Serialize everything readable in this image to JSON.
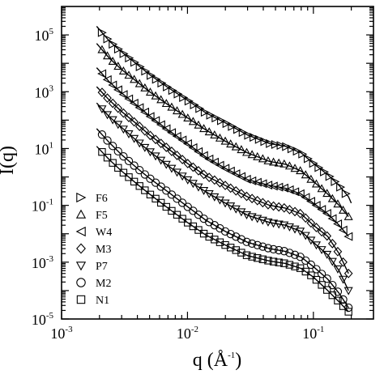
{
  "chart_data": {
    "type": "scatter",
    "x_scale": "log",
    "y_scale": "log",
    "xlim": [
      0.001,
      0.3
    ],
    "ylim": [
      1e-05,
      1000000
    ],
    "xlabel": "q (Å",
    "xlabel_sup": "-1",
    "xlabel_close": ")",
    "ylabel": "I(q)",
    "legend_position": "bottom-left",
    "x_ticks": [
      {
        "value": 0.001,
        "base": "10",
        "exp": "-3"
      },
      {
        "value": 0.01,
        "base": "10",
        "exp": "-2"
      },
      {
        "value": 0.1,
        "base": "10",
        "exp": "-1"
      }
    ],
    "y_ticks": [
      {
        "value": 1e-05,
        "base": "10",
        "exp": "-5"
      },
      {
        "value": 0.001,
        "base": "10",
        "exp": "-3"
      },
      {
        "value": 0.1,
        "base": "10",
        "exp": "-1"
      },
      {
        "value": 10,
        "base": "10",
        "exp": "1"
      },
      {
        "value": 1000,
        "base": "10",
        "exp": "3"
      },
      {
        "value": 100000,
        "base": "10",
        "exp": "5"
      }
    ],
    "series": [
      {
        "name": "F6",
        "marker": "triangle-right",
        "x": [
          0.0019,
          0.0024,
          0.003,
          0.004,
          0.005,
          0.007,
          0.01,
          0.014,
          0.02,
          0.03,
          0.045,
          0.06,
          0.08,
          0.1,
          0.13,
          0.16,
          0.19,
          0.2
        ],
        "y": [
          200000,
          60000,
          25000,
          9000,
          4000,
          1400,
          500,
          180,
          80,
          30,
          15,
          12,
          7,
          3,
          1.2,
          0.5,
          0.2,
          0.12
        ]
      },
      {
        "name": "F5",
        "marker": "triangle-up",
        "x": [
          0.0019,
          0.0024,
          0.003,
          0.004,
          0.005,
          0.007,
          0.01,
          0.014,
          0.02,
          0.03,
          0.045,
          0.06,
          0.08,
          0.1,
          0.13,
          0.16,
          0.19
        ],
        "y": [
          50000,
          15000,
          6000,
          2200,
          1000,
          350,
          120,
          45,
          18,
          7,
          3.5,
          2.8,
          1.6,
          0.7,
          0.25,
          0.1,
          0.04
        ]
      },
      {
        "name": "W4",
        "marker": "triangle-left",
        "x": [
          0.0019,
          0.0024,
          0.003,
          0.004,
          0.005,
          0.007,
          0.01,
          0.014,
          0.02,
          0.03,
          0.045,
          0.06,
          0.08,
          0.1,
          0.13,
          0.16,
          0.19
        ],
        "y": [
          7000,
          2200,
          900,
          320,
          140,
          45,
          15,
          5,
          2,
          0.8,
          0.5,
          0.4,
          0.25,
          0.12,
          0.05,
          0.02,
          0.008
        ]
      },
      {
        "name": "M3",
        "marker": "diamond",
        "x": [
          0.0019,
          0.0024,
          0.003,
          0.004,
          0.005,
          0.007,
          0.01,
          0.014,
          0.02,
          0.03,
          0.045,
          0.06,
          0.08,
          0.1,
          0.13,
          0.16,
          0.19
        ],
        "y": [
          1500,
          500,
          200,
          70,
          30,
          10,
          3,
          1.1,
          0.5,
          0.2,
          0.1,
          0.08,
          0.05,
          0.02,
          0.008,
          0.002,
          0.0004
        ]
      },
      {
        "name": "P7",
        "marker": "triangle-down",
        "x": [
          0.0019,
          0.0024,
          0.003,
          0.004,
          0.005,
          0.007,
          0.01,
          0.014,
          0.02,
          0.03,
          0.045,
          0.06,
          0.08,
          0.1,
          0.13,
          0.16,
          0.19
        ],
        "y": [
          400,
          130,
          55,
          18,
          8,
          2.5,
          0.8,
          0.3,
          0.12,
          0.045,
          0.025,
          0.02,
          0.012,
          0.005,
          0.0018,
          0.0005,
          0.0001
        ]
      },
      {
        "name": "M2",
        "marker": "circle",
        "x": [
          0.0019,
          0.0024,
          0.003,
          0.004,
          0.005,
          0.007,
          0.01,
          0.014,
          0.02,
          0.03,
          0.045,
          0.06,
          0.08,
          0.1,
          0.13,
          0.16,
          0.19
        ],
        "y": [
          50,
          16,
          6,
          2,
          0.9,
          0.3,
          0.09,
          0.03,
          0.012,
          0.005,
          0.003,
          0.0024,
          0.0015,
          0.0007,
          0.00025,
          8e-05,
          2.5e-05
        ]
      },
      {
        "name": "N1",
        "marker": "square",
        "x": [
          0.0019,
          0.0024,
          0.003,
          0.004,
          0.005,
          0.007,
          0.01,
          0.014,
          0.02,
          0.03,
          0.045,
          0.06,
          0.08,
          0.1,
          0.13,
          0.16,
          0.19
        ],
        "y": [
          12,
          4,
          1.6,
          0.55,
          0.25,
          0.08,
          0.025,
          0.009,
          0.004,
          0.0017,
          0.0011,
          0.0009,
          0.0006,
          0.0003,
          0.0001,
          4e-05,
          1.8e-05
        ]
      }
    ]
  }
}
